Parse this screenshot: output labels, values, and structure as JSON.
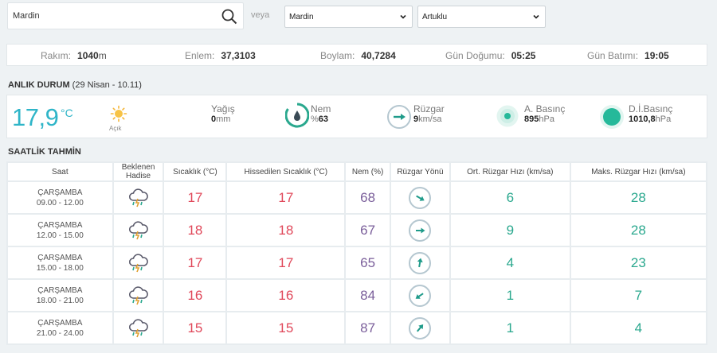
{
  "search": {
    "value": "Mardin",
    "veya": "veya"
  },
  "selects": {
    "il": "Mardin",
    "ilce": "Artuklu"
  },
  "info": {
    "rakim_label": "Rakım:",
    "rakim_value": "1040",
    "rakim_unit": "m",
    "enlem_label": "Enlem:",
    "enlem_value": "37,3103",
    "boylam_label": "Boylam:",
    "boylam_value": "40,7284",
    "dogumu_label": "Gün Doğumu:",
    "dogumu_value": "05:25",
    "batimi_label": "Gün Batımı:",
    "batimi_value": "19:05"
  },
  "current": {
    "title": "ANLIK DURUM",
    "subtitle": "(29 Nisan - 10.11)",
    "temp": "17,9",
    "temp_unit": "°C",
    "condition": "Açık",
    "yagis_label": "Yağış",
    "yagis_value": "0",
    "yagis_unit": "mm",
    "nem_label": "Nem",
    "nem_prefix": "%",
    "nem_value": "63",
    "ruzgar_label": "Rüzgar",
    "ruzgar_value": "9",
    "ruzgar_unit": "km/sa",
    "abasinc_label": "A. Basınç",
    "abasinc_value": "895",
    "abasinc_unit": "hPa",
    "dibasinc_label": "D.İ.Basınç",
    "dibasinc_value": "1010,8",
    "dibasinc_unit": "hPa",
    "colors": {
      "accent": "#2fb5c8",
      "pressure": "#25b99a"
    }
  },
  "hourly": {
    "title": "SAATLİK TAHMİN",
    "headers": {
      "saat": "Saat",
      "hadise": "Beklenen Hadise",
      "sicaklik": "Sıcaklık (°C)",
      "hissedilen": "Hissedilen Sıcaklık (°C)",
      "nem": "Nem (%)",
      "yon": "Rüzgar Yönü",
      "ort": "Ort. Rüzgar Hızı (km/sa)",
      "maks": "Maks. Rüzgar Hızı (km/sa)"
    },
    "rows": [
      {
        "day": "ÇARŞAMBA",
        "range": "09.00 - 12.00",
        "icon": "thunderstorm-icon",
        "temp": "17",
        "feel": "17",
        "hum": "68",
        "dir_deg": 120,
        "wind": "6",
        "gust": "28"
      },
      {
        "day": "ÇARŞAMBA",
        "range": "12.00 - 15.00",
        "icon": "thunderstorm-icon",
        "temp": "18",
        "feel": "18",
        "hum": "67",
        "dir_deg": 90,
        "wind": "9",
        "gust": "28"
      },
      {
        "day": "ÇARŞAMBA",
        "range": "15.00 - 18.00",
        "icon": "thunderstorm-icon",
        "temp": "17",
        "feel": "17",
        "hum": "65",
        "dir_deg": 10,
        "wind": "4",
        "gust": "23"
      },
      {
        "day": "ÇARŞAMBA",
        "range": "18.00 - 21.00",
        "icon": "thunderstorm-icon",
        "temp": "16",
        "feel": "16",
        "hum": "84",
        "dir_deg": 235,
        "wind": "1",
        "gust": "7"
      },
      {
        "day": "ÇARŞAMBA",
        "range": "21.00 - 24.00",
        "icon": "thunderstorm-icon",
        "temp": "15",
        "feel": "15",
        "hum": "87",
        "dir_deg": 40,
        "wind": "1",
        "gust": "4"
      }
    ]
  }
}
